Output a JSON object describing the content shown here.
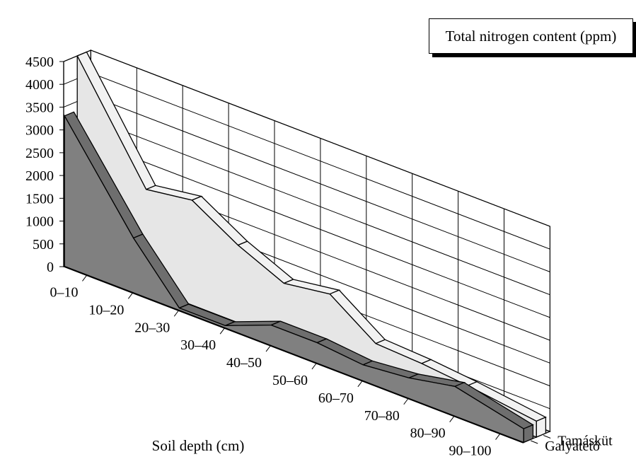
{
  "chart_data": {
    "type": "area",
    "title": "Total nitrogen content (ppm)",
    "xlabel": "Soil depth (cm)",
    "ylabel": "",
    "categories": [
      "0–10",
      "10–20",
      "20–30",
      "30–40",
      "40–50",
      "50–60",
      "60–70",
      "70–80",
      "80–90",
      "90–100"
    ],
    "ylim": [
      0,
      4500
    ],
    "yticks": [
      0,
      500,
      1000,
      1500,
      2000,
      2500,
      3000,
      3500,
      4000,
      4500
    ],
    "series": [
      {
        "name": "Galyatető",
        "values": [
          3300,
          1200,
          50,
          50,
          450,
          450,
          350,
          450,
          650,
          300
        ],
        "color": "#808080"
      },
      {
        "name": "Tamásküt",
        "values": [
          4500,
          2150,
          2300,
          1700,
          1250,
          1400,
          700,
          650,
          550,
          350
        ],
        "color": "#e6e6e6"
      }
    ],
    "legend": "top-right",
    "grid": true,
    "style": "3d"
  }
}
